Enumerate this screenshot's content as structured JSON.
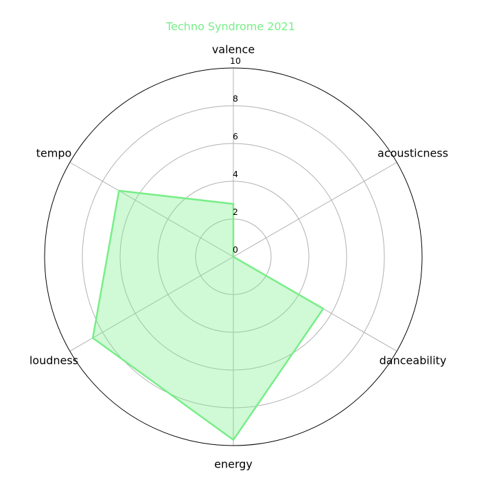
{
  "chart_data": {
    "type": "radar",
    "title": "Techno Syndrome 2021",
    "axes": [
      "valence",
      "acousticness",
      "danceability",
      "energy",
      "loudness",
      "tempo"
    ],
    "series": [
      {
        "values": [
          2.8,
          0.0,
          5.5,
          9.7,
          8.6,
          7.0
        ],
        "color": "#77ee88"
      }
    ],
    "rlim": [
      0,
      10
    ],
    "rticks": [
      0,
      2,
      4,
      6,
      8,
      10
    ],
    "grid": true
  }
}
